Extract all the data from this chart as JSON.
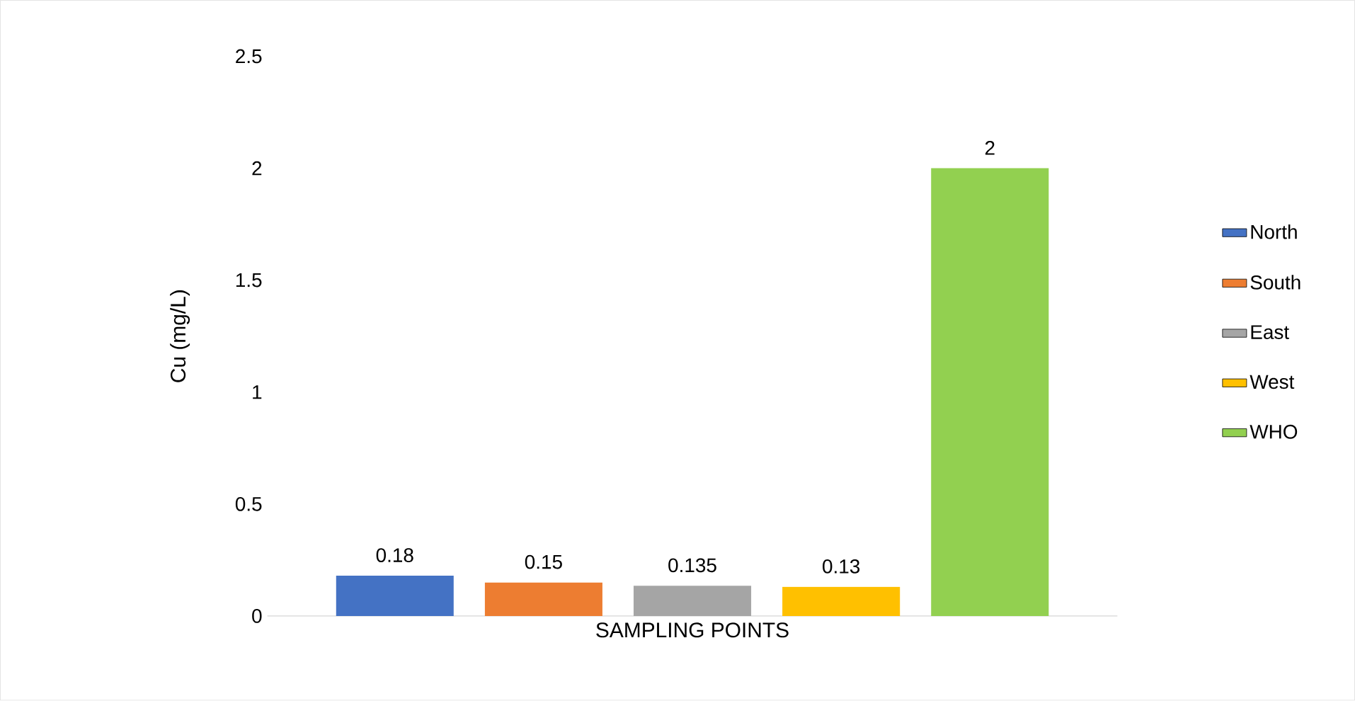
{
  "chart_data": {
    "type": "bar",
    "xlabel": "SAMPLING POINTS",
    "ylabel": "Cu (mg/L)",
    "categories": [
      null
    ],
    "series": [
      {
        "name": "North",
        "color": "#4472c4",
        "values": [
          0.18
        ]
      },
      {
        "name": "South",
        "color": "#ed7d31",
        "values": [
          0.15
        ]
      },
      {
        "name": "East",
        "color": "#a5a5a5",
        "values": [
          0.135
        ]
      },
      {
        "name": "West",
        "color": "#ffc000",
        "values": [
          0.13
        ]
      },
      {
        "name": "WHO",
        "color": "#92d050",
        "values": [
          2
        ]
      }
    ],
    "ylim": [
      0,
      2.5
    ],
    "yticks": [
      0,
      0.5,
      1,
      1.5,
      2,
      2.5
    ],
    "data_labels": true,
    "legend": "right",
    "grid": false
  }
}
